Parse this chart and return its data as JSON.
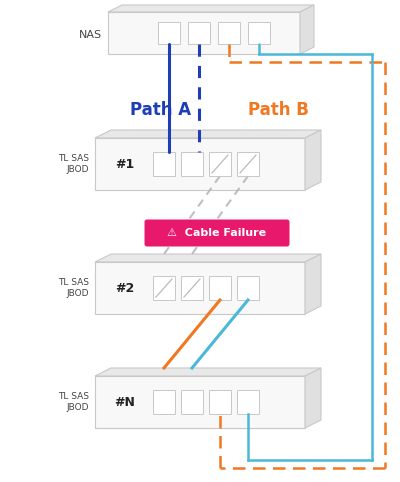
{
  "bg_color": "#ffffff",
  "box_edge_color": "#c8c8c8",
  "box_face_color": "#f8f8f8",
  "box_top_color": "#e8e8e8",
  "box_right_color": "#e0e0e0",
  "nas_label": "NAS",
  "jbod_labels": [
    "TL SAS\nJBOD",
    "TL SAS\nJBOD",
    "TL SAS\nJBOD"
  ],
  "jbod_numbers": [
    "#1",
    "#2",
    "#N"
  ],
  "path_a_color": "#1e3eb5",
  "path_b_color_orange": "#f07820",
  "path_b_color_cyan": "#4ab8d8",
  "cable_failure_bg": "#e8186c",
  "cable_failure_text": "⚠  Cable Failure",
  "broken_color": "#b8b8b8",
  "label_a": "Path A",
  "label_b": "Path B",
  "label_color_a": "#1e3eb5",
  "label_color_b": "#f07820"
}
